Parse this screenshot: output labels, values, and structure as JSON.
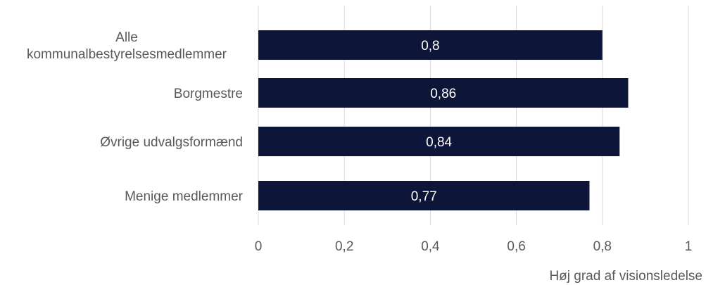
{
  "chart_data": {
    "type": "bar",
    "orientation": "horizontal",
    "categories": [
      [
        "Alle",
        "kommunalbestyrelsesmedlemmer"
      ],
      [
        "Borgmestre"
      ],
      [
        "Øvrige udvalgsformænd"
      ],
      [
        "Menige medlemmer"
      ]
    ],
    "values": [
      0.8,
      0.86,
      0.84,
      0.77
    ],
    "data_labels": [
      "0,8",
      "0,86",
      "0,84",
      "0,77"
    ],
    "xlabel": "Høj grad af visionsledelse",
    "xlim": [
      0,
      1
    ],
    "ticks": [
      0,
      0.2,
      0.4,
      0.6,
      0.8,
      1
    ],
    "tick_labels": [
      "0",
      "0,2",
      "0,4",
      "0,6",
      "0,8",
      "1"
    ],
    "grid": true,
    "legend": "none",
    "bar_color": "#0d1538",
    "gridline_color": "#d9d9d9",
    "text_color": "#595959",
    "data_label_color": "#ffffff"
  }
}
